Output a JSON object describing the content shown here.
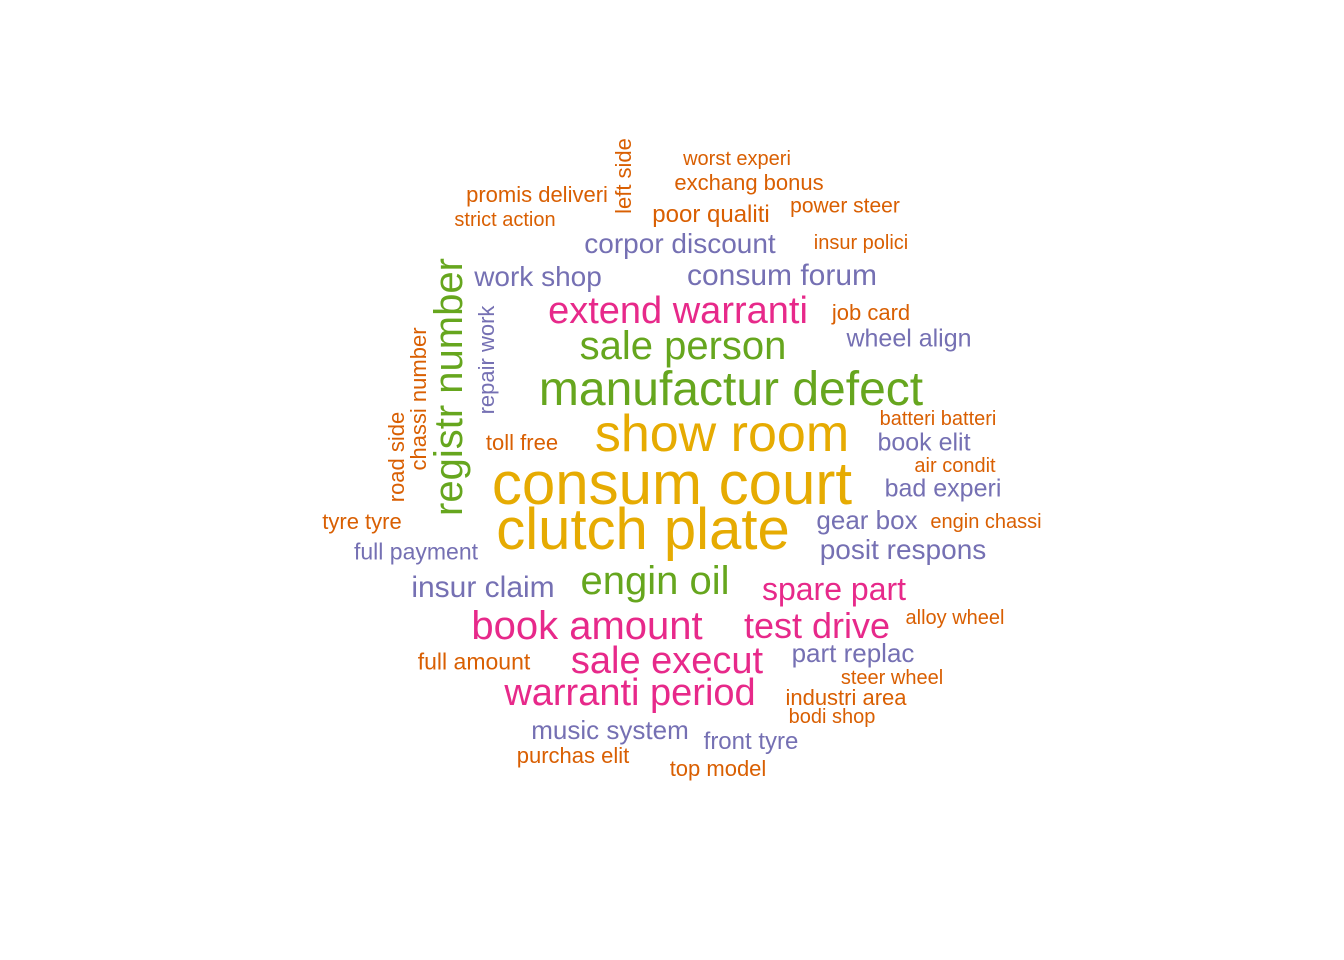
{
  "colors": {
    "orange": "#d95f02",
    "purple": "#7570b3",
    "pink": "#e7298a",
    "green": "#66a61e",
    "gold": "#e6ab02"
  },
  "words": [
    {
      "text": "consum court",
      "color": "gold",
      "orientation": "horizontal"
    },
    {
      "text": "clutch plate",
      "color": "gold",
      "orientation": "horizontal"
    },
    {
      "text": "show room",
      "color": "gold",
      "orientation": "horizontal"
    },
    {
      "text": "manufactur defect",
      "color": "green",
      "orientation": "horizontal"
    },
    {
      "text": "registr number",
      "color": "green",
      "orientation": "vertical"
    },
    {
      "text": "sale person",
      "color": "green",
      "orientation": "horizontal"
    },
    {
      "text": "engin oil",
      "color": "green",
      "orientation": "horizontal"
    },
    {
      "text": "extend warranti",
      "color": "pink",
      "orientation": "horizontal"
    },
    {
      "text": "book amount",
      "color": "pink",
      "orientation": "horizontal"
    },
    {
      "text": "sale execut",
      "color": "pink",
      "orientation": "horizontal"
    },
    {
      "text": "warranti period",
      "color": "pink",
      "orientation": "horizontal"
    },
    {
      "text": "test drive",
      "color": "pink",
      "orientation": "horizontal"
    },
    {
      "text": "spare part",
      "color": "pink",
      "orientation": "horizontal"
    },
    {
      "text": "corpor discount",
      "color": "purple",
      "orientation": "horizontal"
    },
    {
      "text": "consum forum",
      "color": "purple",
      "orientation": "horizontal"
    },
    {
      "text": "work shop",
      "color": "purple",
      "orientation": "horizontal"
    },
    {
      "text": "wheel align",
      "color": "purple",
      "orientation": "horizontal"
    },
    {
      "text": "repair work",
      "color": "purple",
      "orientation": "vertical"
    },
    {
      "text": "book elit",
      "color": "purple",
      "orientation": "horizontal"
    },
    {
      "text": "bad experi",
      "color": "purple",
      "orientation": "horizontal"
    },
    {
      "text": "gear box",
      "color": "purple",
      "orientation": "horizontal"
    },
    {
      "text": "posit respons",
      "color": "purple",
      "orientation": "horizontal"
    },
    {
      "text": "full payment",
      "color": "purple",
      "orientation": "horizontal"
    },
    {
      "text": "insur claim",
      "color": "purple",
      "orientation": "horizontal"
    },
    {
      "text": "part replac",
      "color": "purple",
      "orientation": "horizontal"
    },
    {
      "text": "music system",
      "color": "purple",
      "orientation": "horizontal"
    },
    {
      "text": "front tyre",
      "color": "purple",
      "orientation": "horizontal"
    },
    {
      "text": "worst experi",
      "color": "orange",
      "orientation": "horizontal"
    },
    {
      "text": "exchang bonus",
      "color": "orange",
      "orientation": "horizontal"
    },
    {
      "text": "left side",
      "color": "orange",
      "orientation": "vertical"
    },
    {
      "text": "promis deliveri",
      "color": "orange",
      "orientation": "horizontal"
    },
    {
      "text": "strict action",
      "color": "orange",
      "orientation": "horizontal"
    },
    {
      "text": "poor qualiti",
      "color": "orange",
      "orientation": "horizontal"
    },
    {
      "text": "power steer",
      "color": "orange",
      "orientation": "horizontal"
    },
    {
      "text": "insur polici",
      "color": "orange",
      "orientation": "horizontal"
    },
    {
      "text": "job card",
      "color": "orange",
      "orientation": "horizontal"
    },
    {
      "text": "chassi number",
      "color": "orange",
      "orientation": "vertical"
    },
    {
      "text": "road side",
      "color": "orange",
      "orientation": "vertical"
    },
    {
      "text": "batteri batteri",
      "color": "orange",
      "orientation": "horizontal"
    },
    {
      "text": "toll free",
      "color": "orange",
      "orientation": "horizontal"
    },
    {
      "text": "air condit",
      "color": "orange",
      "orientation": "horizontal"
    },
    {
      "text": "tyre tyre",
      "color": "orange",
      "orientation": "horizontal"
    },
    {
      "text": "engin chassi",
      "color": "orange",
      "orientation": "horizontal"
    },
    {
      "text": "alloy wheel",
      "color": "orange",
      "orientation": "horizontal"
    },
    {
      "text": "full amount",
      "color": "orange",
      "orientation": "horizontal"
    },
    {
      "text": "steer wheel",
      "color": "orange",
      "orientation": "horizontal"
    },
    {
      "text": "industri area",
      "color": "orange",
      "orientation": "horizontal"
    },
    {
      "text": "bodi shop",
      "color": "orange",
      "orientation": "horizontal"
    },
    {
      "text": "purchas elit",
      "color": "orange",
      "orientation": "horizontal"
    },
    {
      "text": "top model",
      "color": "orange",
      "orientation": "horizontal"
    }
  ]
}
